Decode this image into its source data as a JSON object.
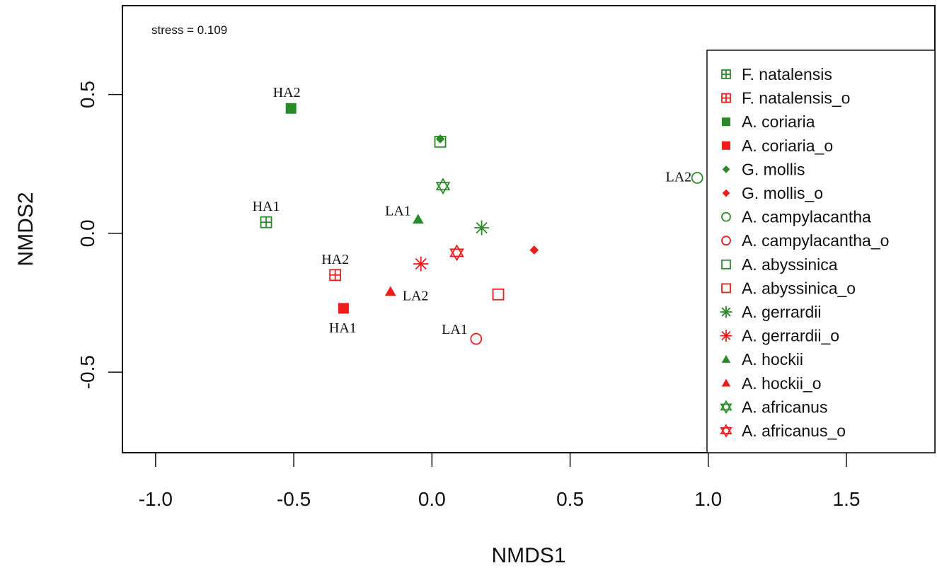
{
  "chart_data": {
    "type": "scatter",
    "xlabel": "NMDS1",
    "ylabel": "NMDS2",
    "xlim": [
      -1.12,
      1.82
    ],
    "ylim": [
      -0.79,
      0.82
    ],
    "xticks": [
      "-1.0",
      "-0.5",
      "0.0",
      "0.5",
      "1.0",
      "1.5"
    ],
    "xtick_values": [
      -1.0,
      -0.5,
      0.0,
      0.5,
      1.0,
      1.5
    ],
    "yticks": [
      "-0.5",
      "0.0",
      "0.5"
    ],
    "ytick_values": [
      -0.5,
      0.0,
      0.5
    ],
    "annotation": "stress = 0.109",
    "legend_position": "top-right",
    "colors": {
      "green": "#2a8a2a",
      "red": "#ee1c1c"
    },
    "series": [
      {
        "name": "F. natalensis",
        "color": "green",
        "marker": "boxplus",
        "points": [
          {
            "x": -0.6,
            "y": 0.04,
            "label": "HA1"
          }
        ]
      },
      {
        "name": "F. natalensis_o",
        "color": "red",
        "marker": "boxplus",
        "points": [
          {
            "x": -0.35,
            "y": -0.15,
            "label": "HA2"
          }
        ]
      },
      {
        "name": "A. coriaria",
        "color": "green",
        "marker": "square-filled",
        "points": [
          {
            "x": -0.51,
            "y": 0.45,
            "label": "HA2"
          }
        ]
      },
      {
        "name": "A. coriaria_o",
        "color": "red",
        "marker": "square-filled",
        "points": [
          {
            "x": -0.32,
            "y": -0.27,
            "label": "HA1"
          }
        ]
      },
      {
        "name": "G. mollis",
        "color": "green",
        "marker": "diamond-filled",
        "points": [
          {
            "x": 0.03,
            "y": 0.34,
            "label": ""
          }
        ]
      },
      {
        "name": "G. mollis_o",
        "color": "red",
        "marker": "diamond-filled",
        "points": [
          {
            "x": 0.37,
            "y": -0.06,
            "label": ""
          }
        ]
      },
      {
        "name": "A. campylacantha",
        "color": "green",
        "marker": "circle-open",
        "points": [
          {
            "x": 0.96,
            "y": 0.2,
            "label": "LA2"
          }
        ]
      },
      {
        "name": "A. campylacantha_o",
        "color": "red",
        "marker": "circle-open",
        "points": [
          {
            "x": 0.16,
            "y": -0.38,
            "label": "LA1"
          }
        ]
      },
      {
        "name": "A. abyssinica",
        "color": "green",
        "marker": "square-open",
        "points": [
          {
            "x": 0.03,
            "y": 0.33,
            "label": ""
          }
        ]
      },
      {
        "name": "A. abyssinica_o",
        "color": "red",
        "marker": "square-open",
        "points": [
          {
            "x": 0.24,
            "y": -0.22,
            "label": ""
          }
        ]
      },
      {
        "name": "A. gerrardii",
        "color": "green",
        "marker": "asterisk",
        "points": [
          {
            "x": 0.18,
            "y": 0.02,
            "label": ""
          }
        ]
      },
      {
        "name": "A. gerrardii_o",
        "color": "red",
        "marker": "asterisk",
        "points": [
          {
            "x": -0.04,
            "y": -0.11,
            "label": ""
          }
        ]
      },
      {
        "name": "A. hockii",
        "color": "green",
        "marker": "triangle-filled",
        "points": [
          {
            "x": -0.05,
            "y": 0.05,
            "label": "LA1"
          }
        ]
      },
      {
        "name": "A. hockii_o",
        "color": "red",
        "marker": "triangle-filled",
        "points": [
          {
            "x": -0.15,
            "y": -0.21,
            "label": "LA2"
          }
        ]
      },
      {
        "name": "A. africanus",
        "color": "green",
        "marker": "star-of-david",
        "points": [
          {
            "x": 0.04,
            "y": 0.17,
            "label": ""
          }
        ]
      },
      {
        "name": "A. africanus_o",
        "color": "red",
        "marker": "star-of-david",
        "points": [
          {
            "x": 0.09,
            "y": -0.07,
            "label": ""
          }
        ]
      }
    ]
  }
}
